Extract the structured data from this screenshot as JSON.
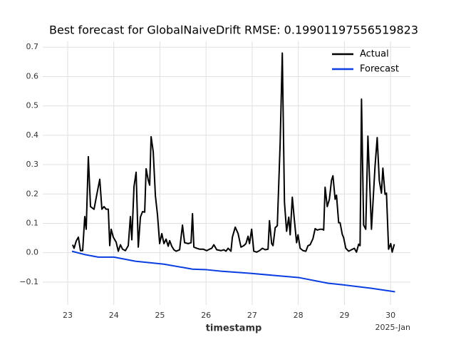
{
  "chart_data": {
    "type": "line",
    "title": "Best forecast for GlobalNaiveDrift RMSE: 0.19901197556519823",
    "x_label": "timestamp",
    "x_offset_label": "2025-Jan",
    "xlim": [
      22.46,
      30.43
    ],
    "xticks": [
      23,
      24,
      25,
      26,
      27,
      28,
      29,
      30
    ],
    "ylim": [
      -0.178,
      0.72
    ],
    "yticks": [
      {
        "value": -0.1,
        "label": "−0.1"
      },
      {
        "value": 0,
        "label": "0.0"
      },
      0.1,
      0.2,
      0.3,
      0.4,
      0.5,
      0.6,
      0.7
    ],
    "grid": true,
    "legend": "upper right",
    "series": [
      {
        "name": "Actual",
        "color": "#000000",
        "x": [
          23.108,
          23.139,
          23.186,
          23.232,
          23.278,
          23.325,
          23.371,
          23.402,
          23.448,
          23.495,
          23.572,
          23.634,
          23.696,
          23.742,
          23.788,
          23.835,
          23.881,
          23.912,
          23.943,
          23.989,
          24.051,
          24.098,
          24.144,
          24.19,
          24.252,
          24.314,
          24.36,
          24.391,
          24.438,
          24.484,
          24.531,
          24.577,
          24.623,
          24.67,
          24.701,
          24.747,
          24.778,
          24.809,
          24.855,
          24.902,
          24.948,
          24.994,
          25.041,
          25.087,
          25.133,
          25.18,
          25.211,
          25.257,
          25.304,
          25.35,
          25.427,
          25.489,
          25.535,
          25.613,
          25.675,
          25.706,
          25.736,
          25.798,
          25.86,
          25.937,
          26.015,
          26.076,
          26.123,
          26.169,
          26.231,
          26.324,
          26.386,
          26.432,
          26.478,
          26.54,
          26.571,
          26.633,
          26.695,
          26.757,
          26.819,
          26.865,
          26.911,
          26.942,
          26.989,
          27.035,
          27.097,
          27.159,
          27.221,
          27.282,
          27.344,
          27.375,
          27.422,
          27.452,
          27.499,
          27.545,
          27.607,
          27.653,
          27.7,
          27.746,
          27.793,
          27.824,
          27.87,
          27.916,
          27.963,
          27.994,
          28.04,
          28.102,
          28.164,
          28.21,
          28.256,
          28.318,
          28.365,
          28.411,
          28.473,
          28.519,
          28.55,
          28.581,
          28.627,
          28.674,
          28.72,
          28.751,
          28.798,
          28.828,
          28.875,
          28.906,
          28.952,
          28.983,
          29.029,
          29.091,
          29.153,
          29.215,
          29.261,
          29.308,
          29.339,
          29.37,
          29.416,
          29.462,
          29.509,
          29.586,
          29.663,
          29.71,
          29.756,
          29.802,
          29.833,
          29.88,
          29.911,
          29.957,
          30.004,
          30.035,
          30.081
        ],
        "values": [
          0.027,
          0.015,
          0.04,
          0.053,
          0.007,
          0.007,
          0.123,
          0.08,
          0.327,
          0.157,
          0.148,
          0.2,
          0.25,
          0.148,
          0.157,
          0.148,
          0.148,
          0.024,
          0.08,
          0.053,
          0.036,
          0.005,
          0.027,
          0.012,
          0.007,
          0.024,
          0.123,
          0.044,
          0.225,
          0.274,
          0.019,
          0.121,
          0.14,
          0.138,
          0.286,
          0.247,
          0.23,
          0.395,
          0.344,
          0.194,
          0.128,
          0.031,
          0.065,
          0.031,
          0.046,
          0.022,
          0.041,
          0.022,
          0.01,
          0.005,
          0.01,
          0.094,
          0.034,
          0.031,
          0.034,
          0.133,
          0.019,
          0.015,
          0.012,
          0.012,
          0.007,
          0.012,
          0.015,
          0.027,
          0.01,
          0.007,
          0.01,
          0.005,
          0.015,
          0.005,
          0.053,
          0.087,
          0.065,
          0.019,
          0.024,
          0.031,
          0.056,
          0.031,
          0.08,
          0.005,
          0.002,
          0.007,
          0.015,
          0.01,
          0.012,
          0.109,
          0.031,
          0.024,
          0.085,
          0.092,
          0.375,
          0.68,
          0.172,
          0.073,
          0.121,
          0.061,
          0.189,
          0.109,
          0.034,
          0.061,
          0.015,
          0.007,
          0.005,
          0.024,
          0.027,
          0.048,
          0.082,
          0.077,
          0.08,
          0.08,
          0.077,
          0.223,
          0.157,
          0.182,
          0.247,
          0.262,
          0.182,
          0.196,
          0.102,
          0.102,
          0.063,
          0.051,
          0.015,
          0.005,
          0.01,
          0.015,
          0.002,
          0.029,
          0.024,
          0.523,
          0.094,
          0.08,
          0.397,
          0.08,
          0.293,
          0.392,
          0.245,
          0.203,
          0.288,
          0.199,
          0.203,
          0.012,
          0.031,
          0.002,
          0.029
        ]
      },
      {
        "name": "Forecast",
        "color": "#0a3ee0",
        "x": [
          23.093,
          23.387,
          23.665,
          24.005,
          24.468,
          25.087,
          25.706,
          26.015,
          26.324,
          26.942,
          28.021,
          28.643,
          28.952,
          29.571,
          30.097
        ],
        "values": [
          0.005,
          -0.007,
          -0.015,
          -0.015,
          -0.029,
          -0.039,
          -0.056,
          -0.058,
          -0.063,
          -0.07,
          -0.085,
          -0.104,
          -0.109,
          -0.121,
          -0.133
        ]
      }
    ]
  }
}
